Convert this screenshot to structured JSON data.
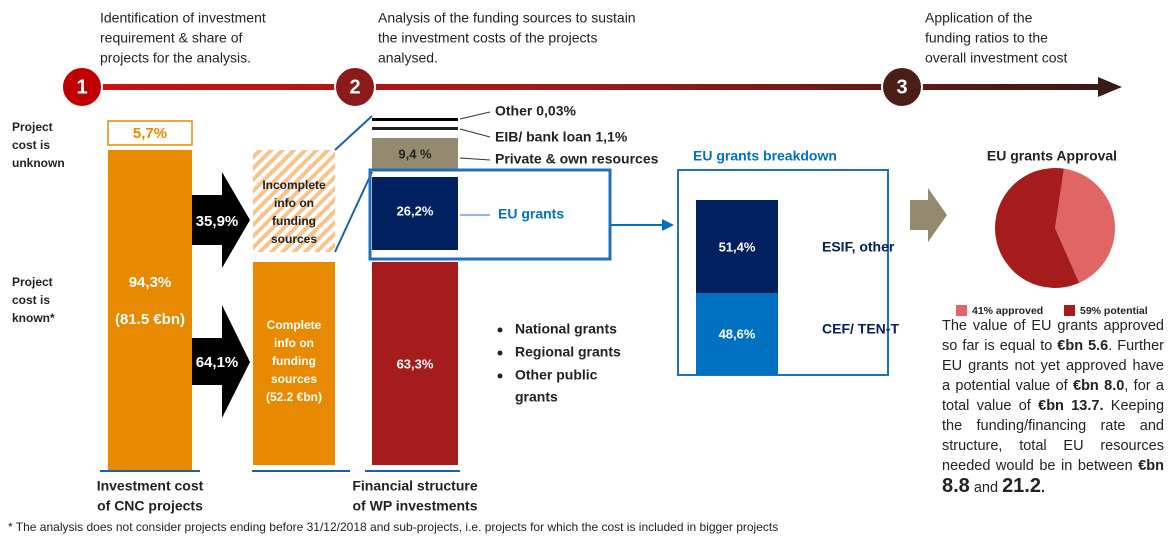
{
  "steps": [
    {
      "number": "1",
      "lines": [
        "Identification of investment",
        "requirement & share of",
        "projects for the analysis."
      ]
    },
    {
      "number": "2",
      "lines": [
        "Analysis of the funding sources to sustain",
        "the investment costs of the projects",
        "analysed."
      ]
    },
    {
      "number": "3",
      "lines": [
        "Application of the",
        "funding ratios to the",
        "overall investment cost"
      ]
    }
  ],
  "side_labels": {
    "unknown": [
      "Project",
      "cost is",
      "unknown"
    ],
    "known": [
      "Project",
      "cost is",
      "known*"
    ]
  },
  "investment_bar": {
    "unknown_share": "5,7%",
    "known_share": "94,3%",
    "known_amount": "(81.5 €bn)",
    "caption": [
      "Investment cost",
      "of CNC projects"
    ]
  },
  "arrows": [
    "35,9%",
    "64,1%"
  ],
  "info_boxes": {
    "incomplete": [
      "Incomplete",
      "info on",
      "funding",
      "sources"
    ],
    "complete": [
      "Complete",
      "info on",
      "funding",
      "sources",
      "(52.2 €bn)"
    ]
  },
  "financial_structure": {
    "other": "Other 0,03%",
    "eib": "EIB/ bank loan 1,1%",
    "private_value": "9,4 %",
    "private": "Private & own resources",
    "eu_value": "26,2%",
    "eu": "EU grants",
    "public_value": "63,3%",
    "public": [
      "National grants",
      "Regional grants",
      "Other public",
      "grants"
    ],
    "caption": [
      "Financial structure",
      "of WP investments"
    ]
  },
  "breakdown": {
    "title": "EU grants breakdown",
    "esif_value": "51,4%",
    "esif": "ESIF, other",
    "cef_value": "48,6%",
    "cef": "CEF/ TEN-T"
  },
  "chart_data": {
    "type": "pie",
    "title": "EU grants Approval",
    "categories": [
      "41% approved",
      "59% potential"
    ],
    "values": [
      41,
      59
    ],
    "colors": [
      "#e06666",
      "#a61c1c"
    ]
  },
  "paragraph": [
    {
      "text": "The value of EU grants approved so far is equal to ",
      "style": "normal"
    },
    {
      "text": "€bn 5.6",
      "style": "bold"
    },
    {
      "text": ". Further EU grants not yet approved have a potential value of ",
      "style": "normal"
    },
    {
      "text": "€bn 8.0",
      "style": "bold"
    },
    {
      "text": ", for a total value of ",
      "style": "normal"
    },
    {
      "text": "€bn 13.7.",
      "style": "bold"
    },
    {
      "text": " Keeping the funding/financing rate and structure, total EU resources needed would be in between ",
      "style": "normal"
    },
    {
      "text": "€bn ",
      "style": "bold"
    },
    {
      "text": "8.8",
      "style": "bold-large"
    },
    {
      "text": " and ",
      "style": "normal"
    },
    {
      "text": "21.2",
      "style": "bold-large"
    },
    {
      "text": ".",
      "style": "bold"
    }
  ],
  "footnote": "* The analysis does not consider projects ending before 31/12/2018 and sub-projects, i.e. projects for which the cost is included in bigger projects"
}
